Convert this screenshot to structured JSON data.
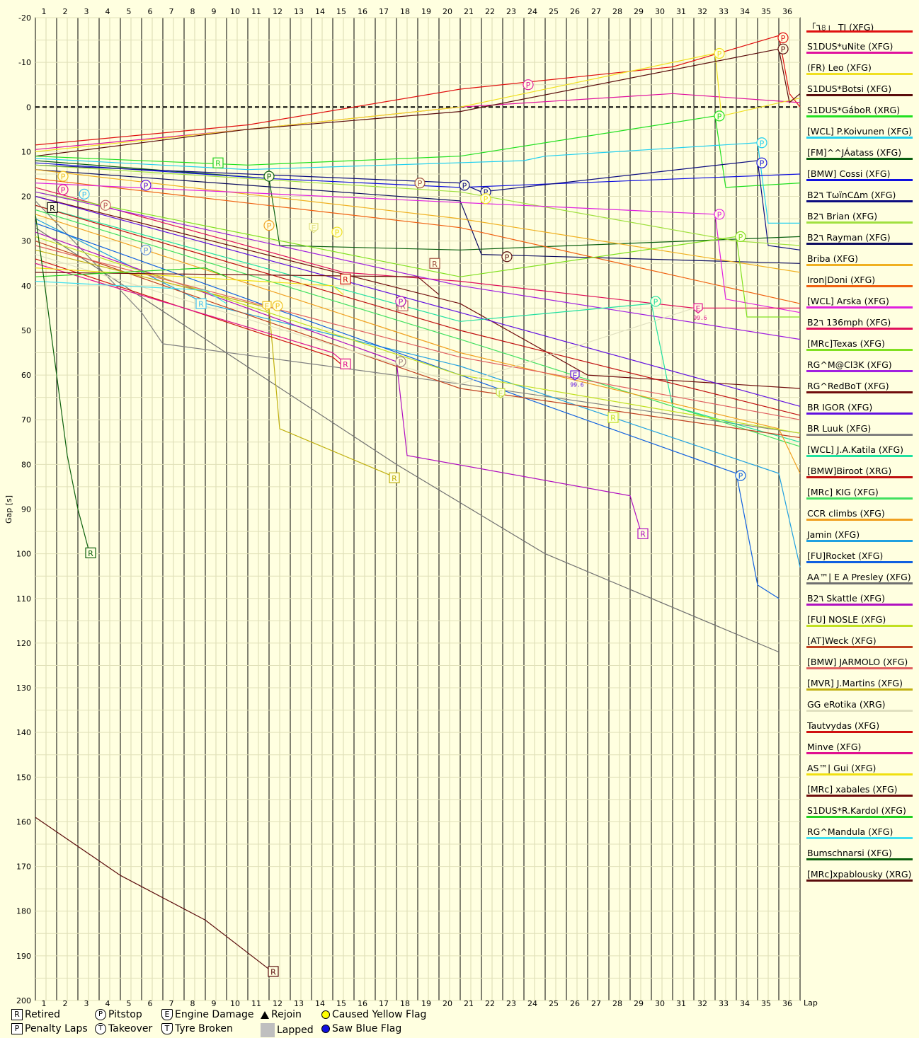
{
  "chart_data": {
    "type": "line",
    "xlabel": "Lap",
    "ylabel": "Gap [s]",
    "laps": [
      "1",
      "2",
      "3",
      "4",
      "5",
      "6",
      "7",
      "8",
      "9",
      "10",
      "11",
      "12",
      "13",
      "14",
      "15",
      "16",
      "17",
      "18",
      "19",
      "20",
      "21",
      "22",
      "23",
      "24",
      "25",
      "26",
      "27",
      "28",
      "29",
      "30",
      "31",
      "32",
      "33",
      "34",
      "35",
      "36"
    ],
    "y_ticks": [
      "-20",
      "-10",
      "0",
      "10",
      "20",
      "30",
      "40",
      "50",
      "60",
      "70",
      "80",
      "90",
      "100",
      "110",
      "120",
      "130",
      "140",
      "150",
      "160",
      "170",
      "180",
      "190",
      "200"
    ],
    "ylim": [
      -20,
      200
    ],
    "y_inverted": true,
    "reference_line": 0,
    "series": [
      {
        "name": "「٦৪」 TJ (XFG)",
        "color": "#e01010",
        "start": 8.5,
        "pts": [
          [
            10,
            4
          ],
          [
            20,
            -4
          ],
          [
            30,
            -9
          ],
          [
            35,
            -16
          ],
          [
            35.5,
            -3
          ],
          [
            36,
            0
          ]
        ]
      },
      {
        "name": "S1DUS*uNite (XFG)",
        "color": "#e0109e",
        "start": 9.5,
        "pts": [
          [
            10,
            5
          ],
          [
            20,
            0
          ],
          [
            30,
            -3
          ],
          [
            36,
            -1
          ]
        ]
      },
      {
        "name": "(FR) Leo (XFG)",
        "color": "#f0e020",
        "start": 10,
        "pts": [
          [
            10,
            5
          ],
          [
            20,
            0
          ],
          [
            32,
            -12
          ],
          [
            32.3,
            2
          ],
          [
            36,
            -2
          ]
        ]
      },
      {
        "name": "S1DUS*Botsi (XFG)",
        "color": "#5a0c0c",
        "start": 11,
        "pts": [
          [
            10,
            5
          ],
          [
            20,
            1
          ],
          [
            35,
            -13
          ],
          [
            35.5,
            -1
          ],
          [
            36,
            -3
          ]
        ]
      },
      {
        "name": "S1DUS*GáboR (XRG)",
        "color": "#20e020",
        "start": 11,
        "pts": [
          [
            10,
            13
          ],
          [
            20,
            11
          ],
          [
            32,
            2
          ],
          [
            32.5,
            18
          ],
          [
            36,
            17
          ]
        ]
      },
      {
        "name": "[WCL] P.Koivunen (XFG)",
        "color": "#20d0f0",
        "start": 11.5,
        "pts": [
          [
            10,
            14
          ],
          [
            23,
            12
          ],
          [
            24,
            11
          ],
          [
            34,
            8
          ],
          [
            34.5,
            26
          ],
          [
            36,
            26
          ]
        ]
      },
      {
        "name": "[FM]^^JÁatass (XFG)",
        "color": "#0a6010",
        "start": 12,
        "pts": [
          [
            11,
            16
          ],
          [
            11.5,
            31
          ],
          [
            20,
            32
          ],
          [
            36,
            29
          ]
        ]
      },
      {
        "name": "[BMW] Cossi (XFG)",
        "color": "#1010e0",
        "start": 12.5,
        "pts": [
          [
            11,
            16
          ],
          [
            20,
            18
          ],
          [
            36,
            15
          ]
        ]
      },
      {
        "name": "B2٦ TѡïnCΔm (XFG)",
        "color": "#0c0c80",
        "start": 13,
        "pts": [
          [
            20,
            17
          ],
          [
            21,
            19
          ],
          [
            34,
            12
          ],
          [
            34.5,
            31
          ],
          [
            36,
            32
          ]
        ]
      },
      {
        "name": "B2٦ Brian (XFG)",
        "color": "#a0e040",
        "start": 13,
        "pts": [
          [
            20,
            19
          ],
          [
            33,
            30
          ],
          [
            36,
            31
          ]
        ]
      },
      {
        "name": "B2٦ Rayman (XFG)",
        "color": "#0c0c60",
        "start": 14,
        "pts": [
          [
            20,
            21
          ],
          [
            21,
            33
          ],
          [
            36,
            35
          ]
        ]
      },
      {
        "name": "Briba (XFG)",
        "color": "#f0b020",
        "start": 14,
        "pts": [
          [
            20,
            25
          ],
          [
            36,
            37
          ]
        ]
      },
      {
        "name": "Iron|Doni (XFG)",
        "color": "#f06010",
        "start": 16,
        "pts": [
          [
            20,
            27
          ],
          [
            36,
            44
          ]
        ]
      },
      {
        "name": "[WCL] Arska (XFG)",
        "color": "#e020e0",
        "start": 17,
        "pts": [
          [
            32,
            24
          ],
          [
            32.5,
            43
          ],
          [
            36,
            46
          ]
        ]
      },
      {
        "name": "B2٦ 136mph (XFG)",
        "color": "#e0105a",
        "start": 18,
        "pts": [
          [
            14.5,
            37
          ],
          [
            20,
            39
          ],
          [
            31,
            45
          ],
          [
            36,
            45
          ]
        ]
      },
      {
        "name": "[MRc]Texas (XFG)",
        "color": "#80e020",
        "start": 19,
        "pts": [
          [
            20,
            38
          ],
          [
            33,
            29
          ],
          [
            33.5,
            47
          ],
          [
            36,
            47
          ]
        ]
      },
      {
        "name": "RG^M@Cl3K (XFG)",
        "color": "#a020e0",
        "start": 19,
        "pts": [
          [
            20,
            40
          ],
          [
            36,
            52
          ]
        ]
      },
      {
        "name": "RG^RedBoT (XFG)",
        "color": "#700c0c",
        "start": 20,
        "pts": [
          [
            20,
            44
          ],
          [
            26,
            60
          ],
          [
            36,
            63
          ]
        ]
      },
      {
        "name": "BR IGOR (XFG)",
        "color": "#6010e0",
        "start": 20,
        "pts": [
          [
            20,
            46
          ],
          [
            36,
            67
          ]
        ]
      },
      {
        "name": "BR Luuk (XFG)",
        "color": "#808080",
        "start": 21,
        "pts": [
          [
            5,
            46
          ],
          [
            6,
            53
          ],
          [
            20,
            62
          ],
          [
            36,
            73
          ]
        ]
      },
      {
        "name": "[WCL] J.A.Katila (XFG)",
        "color": "#20e0a0",
        "start": 22,
        "pts": [
          [
            20,
            48
          ],
          [
            29,
            44
          ],
          [
            30,
            67
          ],
          [
            36,
            75
          ]
        ]
      },
      {
        "name": "[BMW]Biroot (XRG)",
        "color": "#c01010",
        "start": 22,
        "pts": [
          [
            20,
            50
          ],
          [
            36,
            69
          ]
        ]
      },
      {
        "name": "[MRc] KIG (XFG)",
        "color": "#40e060",
        "start": 23,
        "pts": [
          [
            20,
            52
          ],
          [
            36,
            76
          ]
        ]
      },
      {
        "name": "CCR climbs (XFG)",
        "color": "#f0a020",
        "start": 24,
        "pts": [
          [
            20,
            55
          ],
          [
            35,
            72
          ],
          [
            36,
            82
          ]
        ]
      },
      {
        "name": "Jamin (XFG)",
        "color": "#20a0e0",
        "start": 25,
        "pts": [
          [
            8,
            44
          ],
          [
            20,
            58
          ],
          [
            35,
            82
          ],
          [
            36,
            103
          ]
        ]
      },
      {
        "name": "[FU]Rocket (XFG)",
        "color": "#1060e0",
        "start": 26,
        "pts": [
          [
            20,
            60
          ],
          [
            33,
            82
          ],
          [
            34,
            107
          ],
          [
            35,
            110
          ]
        ]
      },
      {
        "name": "AA™| E A Presley (XFG)",
        "color": "#707070",
        "start": 27,
        "pts": [
          [
            17,
            80
          ],
          [
            24,
            100
          ],
          [
            35,
            122
          ]
        ]
      },
      {
        "name": "B2٦ Skattle (XFG)",
        "color": "#b010c0",
        "start": 28,
        "pts": [
          [
            17,
            57
          ],
          [
            17.5,
            78
          ],
          [
            28,
            87
          ],
          [
            28.5,
            95
          ]
        ]
      },
      {
        "name": "[FU] NOSLE (XFG)",
        "color": "#c0e020",
        "start": 29,
        "pts": [
          [
            20,
            60
          ],
          [
            36,
            73
          ]
        ]
      },
      {
        "name": "[AT]Weck (XFG)",
        "color": "#c04020",
        "start": 30,
        "pts": [
          [
            20,
            63
          ],
          [
            36,
            74
          ]
        ]
      },
      {
        "name": "[BMW] JARMOLO (XFG)",
        "color": "#e06060",
        "start": 31,
        "pts": [
          [
            20,
            56
          ],
          [
            36,
            70
          ]
        ]
      },
      {
        "name": "[MVR] J.Martins (XFG)",
        "color": "#c0b010",
        "start": 32,
        "pts": [
          [
            11,
            45
          ],
          [
            11.5,
            72
          ],
          [
            17,
            83
          ]
        ]
      },
      {
        "name": "GG eRotika (XRG)",
        "color": "#e0e0c0",
        "start": 33,
        "pts": [
          [
            20,
            62
          ],
          [
            31,
            45
          ]
        ]
      },
      {
        "name": "Tautvydas (XFG)",
        "color": "#d01010",
        "start": 34,
        "pts": [
          [
            14,
            56
          ],
          [
            14.5,
            58
          ]
        ]
      },
      {
        "name": "Minve (XFG)",
        "color": "#e01090",
        "start": 35,
        "pts": [
          [
            14,
            55
          ],
          [
            14.5,
            57
          ]
        ]
      },
      {
        "name": "AS™| Gui (XFG)",
        "color": "#f0e010",
        "start": 36,
        "pts": [
          [
            14,
            40
          ],
          [
            14.5,
            42
          ]
        ]
      },
      {
        "name": "[MRc] xabales (XFG)",
        "color": "#700c0c",
        "start": 37,
        "pts": [
          [
            18,
            38
          ],
          [
            19,
            42
          ]
        ]
      },
      {
        "name": "S1DUS*R.Kardol (XFG)",
        "color": "#20d020",
        "start": 38,
        "pts": [
          [
            8,
            36
          ],
          [
            9,
            38
          ]
        ]
      },
      {
        "name": "RG^Mandula (XFG)",
        "color": "#40e0f0",
        "start": 39,
        "pts": [
          [
            8,
            41
          ],
          [
            9,
            44
          ]
        ]
      },
      {
        "name": "Bumschnarsi (XFG)",
        "color": "#0c600c",
        "start": 24,
        "pts": [
          [
            1.5,
            78
          ],
          [
            2,
            90
          ],
          [
            2.5,
            99
          ]
        ]
      },
      {
        "name": "[MRc]xpablousky (XRG)",
        "color": "#5a0c0c",
        "start": 159,
        "pts": [
          [
            4,
            172
          ],
          [
            8,
            182
          ],
          [
            11,
            193
          ]
        ]
      }
    ],
    "markers": [
      {
        "type": "R",
        "lap": 2.6,
        "gap": 99.8,
        "color": "#0c600c"
      },
      {
        "type": "R",
        "lap": 11.2,
        "gap": 193.5,
        "color": "#5a0c0c"
      },
      {
        "type": "R",
        "lap": 8.6,
        "gap": 12.5,
        "color": "#20d020"
      },
      {
        "type": "R",
        "lap": 0.8,
        "gap": 22.5,
        "color": "#000000"
      },
      {
        "type": "R",
        "lap": 14.6,
        "gap": 38.5,
        "color": "#d01010"
      },
      {
        "type": "R",
        "lap": 14.6,
        "gap": 57.5,
        "color": "#e01090"
      },
      {
        "type": "R",
        "lap": 18.8,
        "gap": 35,
        "color": "#a05040"
      },
      {
        "type": "R",
        "lap": 17.3,
        "gap": 44.5,
        "color": "#c06060"
      },
      {
        "type": "R",
        "lap": 7.8,
        "gap": 44,
        "color": "#40c0f0"
      },
      {
        "type": "R",
        "lap": 16.9,
        "gap": 83,
        "color": "#c0b010"
      },
      {
        "type": "R",
        "lap": 28.6,
        "gap": 95.5,
        "color": "#b010c0"
      },
      {
        "type": "R",
        "lap": 27.2,
        "gap": 69.5,
        "color": "#c0e020"
      },
      {
        "type": "P",
        "lap": 35.2,
        "gap": -15.5,
        "color": "#e01010"
      },
      {
        "type": "P",
        "lap": 35.2,
        "gap": -13,
        "color": "#5a0c0c"
      },
      {
        "type": "P",
        "lap": 32.2,
        "gap": -12,
        "color": "#f0e020"
      },
      {
        "type": "P",
        "lap": 23.2,
        "gap": -5,
        "color": "#e020a0"
      },
      {
        "type": "P",
        "lap": 32.2,
        "gap": 2,
        "color": "#20e020"
      },
      {
        "type": "P",
        "lap": 34.2,
        "gap": 8,
        "color": "#20d0f0"
      },
      {
        "type": "P",
        "lap": 34.2,
        "gap": 12.5,
        "color": "#1010e0"
      },
      {
        "type": "P",
        "lap": 11.0,
        "gap": 15.5,
        "color": "#0a6010"
      },
      {
        "type": "P",
        "lap": 18.1,
        "gap": 17,
        "color": "#a05040"
      },
      {
        "type": "P",
        "lap": 20.2,
        "gap": 17.5,
        "color": "#0c0c80"
      },
      {
        "type": "P",
        "lap": 21.2,
        "gap": 19,
        "color": "#0c0c80"
      },
      {
        "type": "P",
        "lap": 21.2,
        "gap": 20.5,
        "color": "#f0e020"
      },
      {
        "type": "P",
        "lap": 22.2,
        "gap": 33.5,
        "color": "#5a0c0c"
      },
      {
        "type": "P",
        "lap": 5.2,
        "gap": 17.5,
        "color": "#6010e0"
      },
      {
        "type": "P",
        "lap": 2.3,
        "gap": 19.5,
        "color": "#40c0f0"
      },
      {
        "type": "P",
        "lap": 1.3,
        "gap": 18.5,
        "color": "#e01090"
      },
      {
        "type": "P",
        "lap": 1.3,
        "gap": 15.5,
        "color": "#f0c020"
      },
      {
        "type": "P",
        "lap": 3.3,
        "gap": 22,
        "color": "#c06060"
      },
      {
        "type": "P",
        "lap": 11.0,
        "gap": 26.5,
        "color": "#f0a020"
      },
      {
        "type": "P",
        "lap": 14.2,
        "gap": 28,
        "color": "#f0e020"
      },
      {
        "type": "P",
        "lap": 5.2,
        "gap": 32,
        "color": "#6090e0"
      },
      {
        "type": "P",
        "lap": 32.2,
        "gap": 24,
        "color": "#e020e0"
      },
      {
        "type": "P",
        "lap": 33.2,
        "gap": 29,
        "color": "#80e020"
      },
      {
        "type": "P",
        "lap": 29.2,
        "gap": 43.5,
        "color": "#20e0a0"
      },
      {
        "type": "P",
        "lap": 17.2,
        "gap": 43.5,
        "color": "#b010c0"
      },
      {
        "type": "P",
        "lap": 17.2,
        "gap": 57,
        "color": "#a08080"
      },
      {
        "type": "P",
        "lap": 11.4,
        "gap": 44.5,
        "color": "#f0c020"
      },
      {
        "type": "P",
        "lap": 33.2,
        "gap": 82.5,
        "color": "#1060e0"
      },
      {
        "type": "E",
        "lap": 13.1,
        "gap": 27,
        "color": "#e0e080"
      },
      {
        "type": "E",
        "lap": 31.2,
        "gap": 45,
        "color": "#e01090"
      },
      {
        "type": "E",
        "lap": 25.4,
        "gap": 60,
        "color": "#6010e0"
      },
      {
        "type": "E",
        "lap": 21.9,
        "gap": 64,
        "color": "#c0e040"
      },
      {
        "type": "E",
        "lap": 10.9,
        "gap": 44.5,
        "color": "#f0c020"
      }
    ],
    "marker_notes": [
      {
        "text": "99.6",
        "lap": 31.3,
        "gap": 47,
        "color": "#e01090"
      },
      {
        "text": "99.6",
        "lap": 25.5,
        "gap": 62,
        "color": "#6010e0"
      }
    ]
  },
  "legend_key": [
    {
      "icon": "box",
      "glyph": "R",
      "label": "Retired"
    },
    {
      "icon": "circle",
      "glyph": "P",
      "label": "Pitstop"
    },
    {
      "icon": "shield",
      "glyph": "E",
      "label": "Engine Damage"
    },
    {
      "icon": "triangle",
      "glyph": "",
      "label": "Rejoin"
    },
    {
      "icon": "dot-yellow",
      "glyph": "",
      "label": "Caused Yellow Flag",
      "color": "#ffff00"
    },
    {
      "icon": "box",
      "glyph": "P",
      "label": "Penalty Laps"
    },
    {
      "icon": "circle",
      "glyph": "T",
      "label": "Takeover"
    },
    {
      "icon": "shield",
      "glyph": "T",
      "label": "Tyre Broken"
    },
    {
      "icon": "grey",
      "glyph": "",
      "label": "Lapped"
    },
    {
      "icon": "dot-blue",
      "glyph": "",
      "label": "Saw Blue Flag",
      "color": "#1010e0"
    }
  ]
}
